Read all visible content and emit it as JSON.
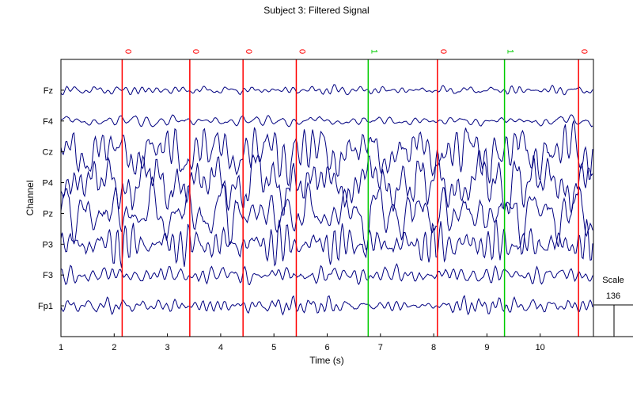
{
  "chart_data": {
    "type": "line",
    "title": "Subject 3: Filtered Signal",
    "xlabel": "Time (s)",
    "ylabel": "Channel",
    "xlim": [
      1,
      11
    ],
    "xticks": [
      1,
      2,
      3,
      4,
      5,
      6,
      7,
      8,
      9,
      10
    ],
    "channels": [
      "Fz",
      "F4",
      "Cz",
      "P4",
      "Pz",
      "P3",
      "F3",
      "Fp1"
    ],
    "channel_amplitude": {
      "Fz": 0.25,
      "F4": 0.3,
      "Cz": 1.6,
      "P4": 1.8,
      "Pz": 1.7,
      "P3": 1.2,
      "F3": 0.5,
      "Fp1": 0.45
    },
    "events": [
      {
        "time": 2.15,
        "label": "0",
        "color": "#ff0000"
      },
      {
        "time": 3.42,
        "label": "0",
        "color": "#ff0000"
      },
      {
        "time": 4.42,
        "label": "0",
        "color": "#ff0000"
      },
      {
        "time": 5.42,
        "label": "0",
        "color": "#ff0000"
      },
      {
        "time": 6.77,
        "label": "1",
        "color": "#00cc00"
      },
      {
        "time": 8.07,
        "label": "0",
        "color": "#ff0000"
      },
      {
        "time": 9.33,
        "label": "1",
        "color": "#00cc00"
      },
      {
        "time": 10.72,
        "label": "0",
        "color": "#ff0000"
      }
    ],
    "scale": {
      "label": "Scale",
      "value": "136"
    },
    "trace_color": "#000080"
  }
}
